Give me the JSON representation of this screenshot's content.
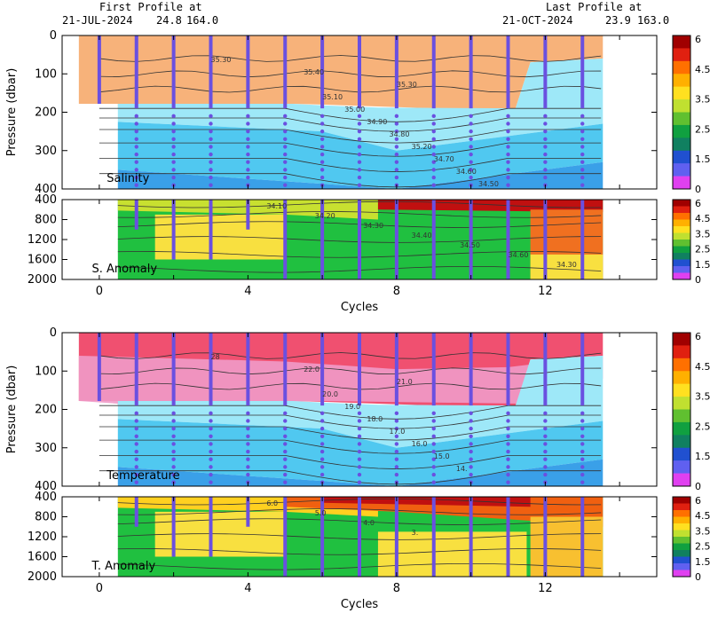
{
  "header": {
    "first_label": "First Profile at",
    "first_date": "21-JUL-2024",
    "first_lat": "24.8",
    "first_lon": "164.0",
    "last_label": "Last Profile at",
    "last_date": "21-OCT-2024",
    "last_lat": "23.9",
    "last_lon": "163.0"
  },
  "colors": {
    "orange": "#f7b27a",
    "red_pink": "#f05070",
    "pink": "#f09ac8",
    "cyan_light": "#9ee8f8",
    "cyan": "#50c8f0",
    "blue": "#3aa0e8",
    "dot": "#6a50e0",
    "yellow": "#f8e040",
    "green": "#20c040",
    "red_dark": "#c01010"
  },
  "colorbar": {
    "ticks": [
      "6",
      "4.5",
      "3.5",
      "2.5",
      "1.5",
      "0"
    ],
    "colors": [
      "#a00000",
      "#e02010",
      "#ff7000",
      "#ffb000",
      "#ffe020",
      "#c0e030",
      "#60c030",
      "#10a040",
      "#108060",
      "#2050d0",
      "#6060f0",
      "#e040f0"
    ]
  },
  "chart_data": [
    {
      "type": "heatmap",
      "title": "Salinity",
      "ylabel": "Pressure (dbar)",
      "xlabel": "",
      "xlim": [
        -1,
        15
      ],
      "ylim": [
        400,
        0
      ],
      "x_ticks": [
        "0",
        "4",
        "8",
        "12"
      ],
      "y_ticks": [
        "0",
        "100",
        "200",
        "300",
        "400"
      ],
      "profiles_x": [
        0,
        1,
        2,
        3,
        4,
        5,
        6,
        7,
        8,
        9,
        10,
        11,
        12,
        13
      ],
      "contour_labels": [
        "35.30",
        "35.40",
        "35.30",
        "35.10",
        "35.00",
        "34.90",
        "34.80",
        "35.20",
        "34.70",
        "34.60",
        "34.50"
      ]
    },
    {
      "type": "heatmap",
      "title": "S. Anomaly",
      "xlabel": "Cycles",
      "xlim": [
        -1,
        15
      ],
      "ylim": [
        2000,
        400
      ],
      "x_ticks": [
        "0",
        "4",
        "8",
        "12"
      ],
      "y_ticks": [
        "400",
        "800",
        "1200",
        "1600",
        "2000"
      ],
      "contour_labels": [
        "34.10",
        "34.20",
        "34.30",
        "34.40",
        "34.50",
        "34.60",
        "34.30"
      ]
    },
    {
      "type": "heatmap",
      "title": "Temperature",
      "ylabel": "Pressure (dbar)",
      "xlim": [
        -1,
        15
      ],
      "ylim": [
        400,
        0
      ],
      "x_ticks": [
        "0",
        "4",
        "8",
        "12"
      ],
      "y_ticks": [
        "0",
        "100",
        "200",
        "300",
        "400"
      ],
      "contour_labels": [
        "28",
        "22.0",
        "21.0",
        "20.0",
        "19.0",
        "18.0",
        "17.0",
        "16.0",
        "15.0",
        "14."
      ]
    },
    {
      "type": "heatmap",
      "title": "T. Anomaly",
      "xlabel": "Cycles",
      "xlim": [
        -1,
        15
      ],
      "ylim": [
        2000,
        400
      ],
      "x_ticks": [
        "0",
        "4",
        "8",
        "12"
      ],
      "y_ticks": [
        "400",
        "800",
        "1200",
        "1600",
        "2000"
      ],
      "contour_labels": [
        "6.0",
        "5.0",
        "4.0",
        "3."
      ]
    }
  ]
}
